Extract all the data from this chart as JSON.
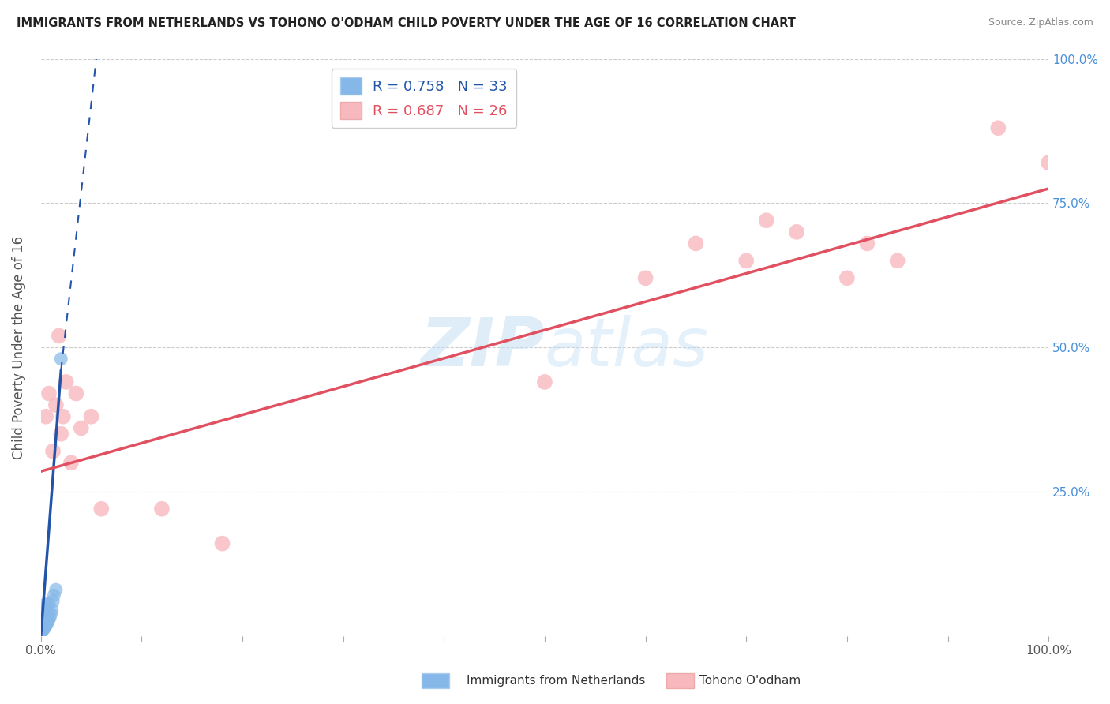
{
  "title": "IMMIGRANTS FROM NETHERLANDS VS TOHONO O'ODHAM CHILD POVERTY UNDER THE AGE OF 16 CORRELATION CHART",
  "source": "Source: ZipAtlas.com",
  "ylabel": "Child Poverty Under the Age of 16",
  "xlim": [
    0,
    1.0
  ],
  "ylim": [
    0,
    1.0
  ],
  "xticks": [
    0.0,
    0.1,
    0.2,
    0.3,
    0.4,
    0.5,
    0.6,
    0.7,
    0.8,
    0.9,
    1.0
  ],
  "xticklabels_visible": {
    "0.0": "0.0%",
    "1.0": "100.0%"
  },
  "yticks": [
    0.0,
    0.25,
    0.5,
    0.75,
    1.0
  ],
  "right_yticklabels": [
    "",
    "25.0%",
    "50.0%",
    "75.0%",
    "100.0%"
  ],
  "blue_R": 0.758,
  "blue_N": 33,
  "pink_R": 0.687,
  "pink_N": 26,
  "blue_color": "#85b8e8",
  "pink_color": "#f7b8be",
  "blue_line_color": "#2255aa",
  "pink_line_color": "#e05060",
  "watermark_zip": "ZIP",
  "watermark_atlas": "atlas",
  "legend_label_blue": "Immigrants from Netherlands",
  "legend_label_pink": "Tohono O'odham",
  "blue_dots": [
    [
      0.0005,
      0.005
    ],
    [
      0.001,
      0.008
    ],
    [
      0.001,
      0.015
    ],
    [
      0.001,
      0.022
    ],
    [
      0.002,
      0.01
    ],
    [
      0.002,
      0.018
    ],
    [
      0.002,
      0.028
    ],
    [
      0.002,
      0.035
    ],
    [
      0.003,
      0.012
    ],
    [
      0.003,
      0.02
    ],
    [
      0.003,
      0.032
    ],
    [
      0.003,
      0.04
    ],
    [
      0.004,
      0.015
    ],
    [
      0.004,
      0.025
    ],
    [
      0.004,
      0.038
    ],
    [
      0.004,
      0.048
    ],
    [
      0.005,
      0.018
    ],
    [
      0.005,
      0.03
    ],
    [
      0.005,
      0.042
    ],
    [
      0.005,
      0.055
    ],
    [
      0.006,
      0.02
    ],
    [
      0.006,
      0.035
    ],
    [
      0.007,
      0.025
    ],
    [
      0.007,
      0.042
    ],
    [
      0.008,
      0.028
    ],
    [
      0.008,
      0.055
    ],
    [
      0.009,
      0.032
    ],
    [
      0.01,
      0.038
    ],
    [
      0.011,
      0.045
    ],
    [
      0.012,
      0.06
    ],
    [
      0.013,
      0.07
    ],
    [
      0.015,
      0.08
    ],
    [
      0.02,
      0.48
    ]
  ],
  "pink_dots": [
    [
      0.005,
      0.38
    ],
    [
      0.008,
      0.42
    ],
    [
      0.012,
      0.32
    ],
    [
      0.015,
      0.4
    ],
    [
      0.018,
      0.52
    ],
    [
      0.02,
      0.35
    ],
    [
      0.022,
      0.38
    ],
    [
      0.025,
      0.44
    ],
    [
      0.03,
      0.3
    ],
    [
      0.035,
      0.42
    ],
    [
      0.04,
      0.36
    ],
    [
      0.05,
      0.38
    ],
    [
      0.06,
      0.22
    ],
    [
      0.12,
      0.22
    ],
    [
      0.18,
      0.16
    ],
    [
      0.5,
      0.44
    ],
    [
      0.6,
      0.62
    ],
    [
      0.65,
      0.68
    ],
    [
      0.7,
      0.65
    ],
    [
      0.72,
      0.72
    ],
    [
      0.75,
      0.7
    ],
    [
      0.8,
      0.62
    ],
    [
      0.82,
      0.68
    ],
    [
      0.85,
      0.65
    ],
    [
      0.95,
      0.88
    ],
    [
      1.0,
      0.82
    ]
  ],
  "blue_line_solid": [
    [
      0.0,
      0.0
    ],
    [
      0.02,
      0.46
    ]
  ],
  "blue_line_dashed": [
    [
      0.02,
      0.46
    ],
    [
      0.055,
      1.0
    ]
  ],
  "pink_line": [
    [
      0.0,
      0.285
    ],
    [
      1.0,
      0.775
    ]
  ]
}
